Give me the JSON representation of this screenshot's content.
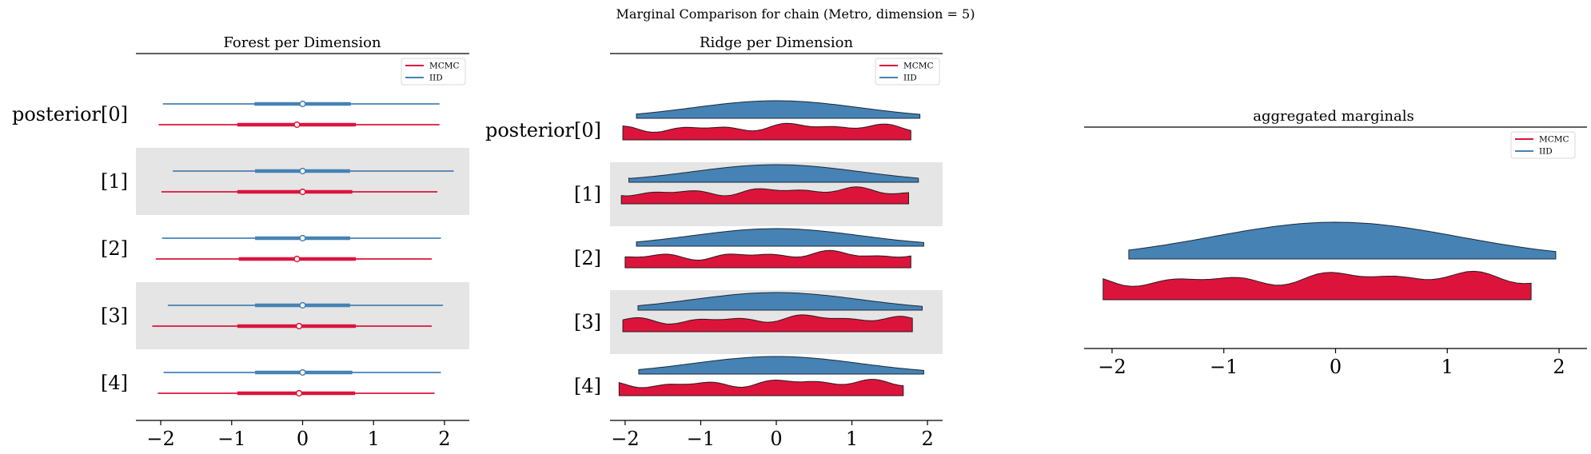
{
  "suptitle": "Marginal Comparison for chain (Metro, dimension = 5)",
  "colors": {
    "mcmc": "#dc143c",
    "iid": "#4682b4",
    "band": "#e5e5e5"
  },
  "legend": {
    "mcmc": "MCMC",
    "iid": "IID"
  },
  "chart_data": [
    {
      "type": "forest",
      "title": "Forest per Dimension",
      "rows": [
        "posterior[0]",
        "[1]",
        "[2]",
        "[3]",
        "[4]"
      ],
      "xticks": [
        "−2",
        "−1",
        "0",
        "1",
        "2"
      ],
      "xlim": [
        -2.35,
        2.35
      ],
      "legend_position": "top-right",
      "series": [
        {
          "name": "IID",
          "intervals": [
            {
              "low": -1.97,
              "q25": -0.68,
              "mean": 0.0,
              "q75": 0.68,
              "high": 1.93
            },
            {
              "low": -1.83,
              "q25": -0.67,
              "mean": 0.0,
              "q75": 0.67,
              "high": 2.13
            },
            {
              "low": -1.98,
              "q25": -0.67,
              "mean": 0.0,
              "q75": 0.67,
              "high": 1.95
            },
            {
              "low": -1.9,
              "q25": -0.67,
              "mean": 0.0,
              "q75": 0.67,
              "high": 1.98
            },
            {
              "low": -1.96,
              "q25": -0.67,
              "mean": 0.0,
              "q75": 0.7,
              "high": 1.95
            }
          ]
        },
        {
          "name": "MCMC",
          "intervals": [
            {
              "low": -2.03,
              "q25": -0.92,
              "mean": -0.08,
              "q75": 0.75,
              "high": 1.93
            },
            {
              "low": -1.99,
              "q25": -0.92,
              "mean": 0.0,
              "q75": 0.7,
              "high": 1.9
            },
            {
              "low": -2.07,
              "q25": -0.9,
              "mean": -0.08,
              "q75": 0.75,
              "high": 1.82
            },
            {
              "low": -2.12,
              "q25": -0.92,
              "mean": -0.05,
              "q75": 0.75,
              "high": 1.82
            },
            {
              "low": -2.04,
              "q25": -0.92,
              "mean": -0.05,
              "q75": 0.74,
              "high": 1.86
            }
          ]
        }
      ]
    },
    {
      "type": "ridgeline",
      "title": "Ridge per Dimension",
      "rows": [
        "posterior[0]",
        "[1]",
        "[2]",
        "[3]",
        "[4]"
      ],
      "xticks": [
        "−2",
        "−1",
        "0",
        "1",
        "2"
      ],
      "xlim": [
        -2.2,
        2.2
      ],
      "legend_position": "top-right",
      "series": [
        {
          "name": "IID",
          "ranges": [
            [
              -1.85,
              1.9
            ],
            [
              -1.95,
              1.88
            ],
            [
              -1.85,
              1.95
            ],
            [
              -1.83,
              1.93
            ],
            [
              -1.82,
              1.95
            ]
          ]
        },
        {
          "name": "MCMC",
          "ranges": [
            [
              -2.03,
              1.78
            ],
            [
              -2.05,
              1.75
            ],
            [
              -2.0,
              1.78
            ],
            [
              -2.03,
              1.8
            ],
            [
              -2.08,
              1.68
            ]
          ]
        }
      ]
    },
    {
      "type": "ridgeline",
      "title": "aggregated marginals",
      "xticks": [
        "−2",
        "−1",
        "0",
        "1",
        "2"
      ],
      "xlim": [
        -2.25,
        2.25
      ],
      "legend_position": "top-right",
      "series": [
        {
          "name": "IID",
          "range": [
            -1.85,
            1.97
          ]
        },
        {
          "name": "MCMC",
          "range": [
            -2.08,
            1.75
          ]
        }
      ]
    }
  ]
}
